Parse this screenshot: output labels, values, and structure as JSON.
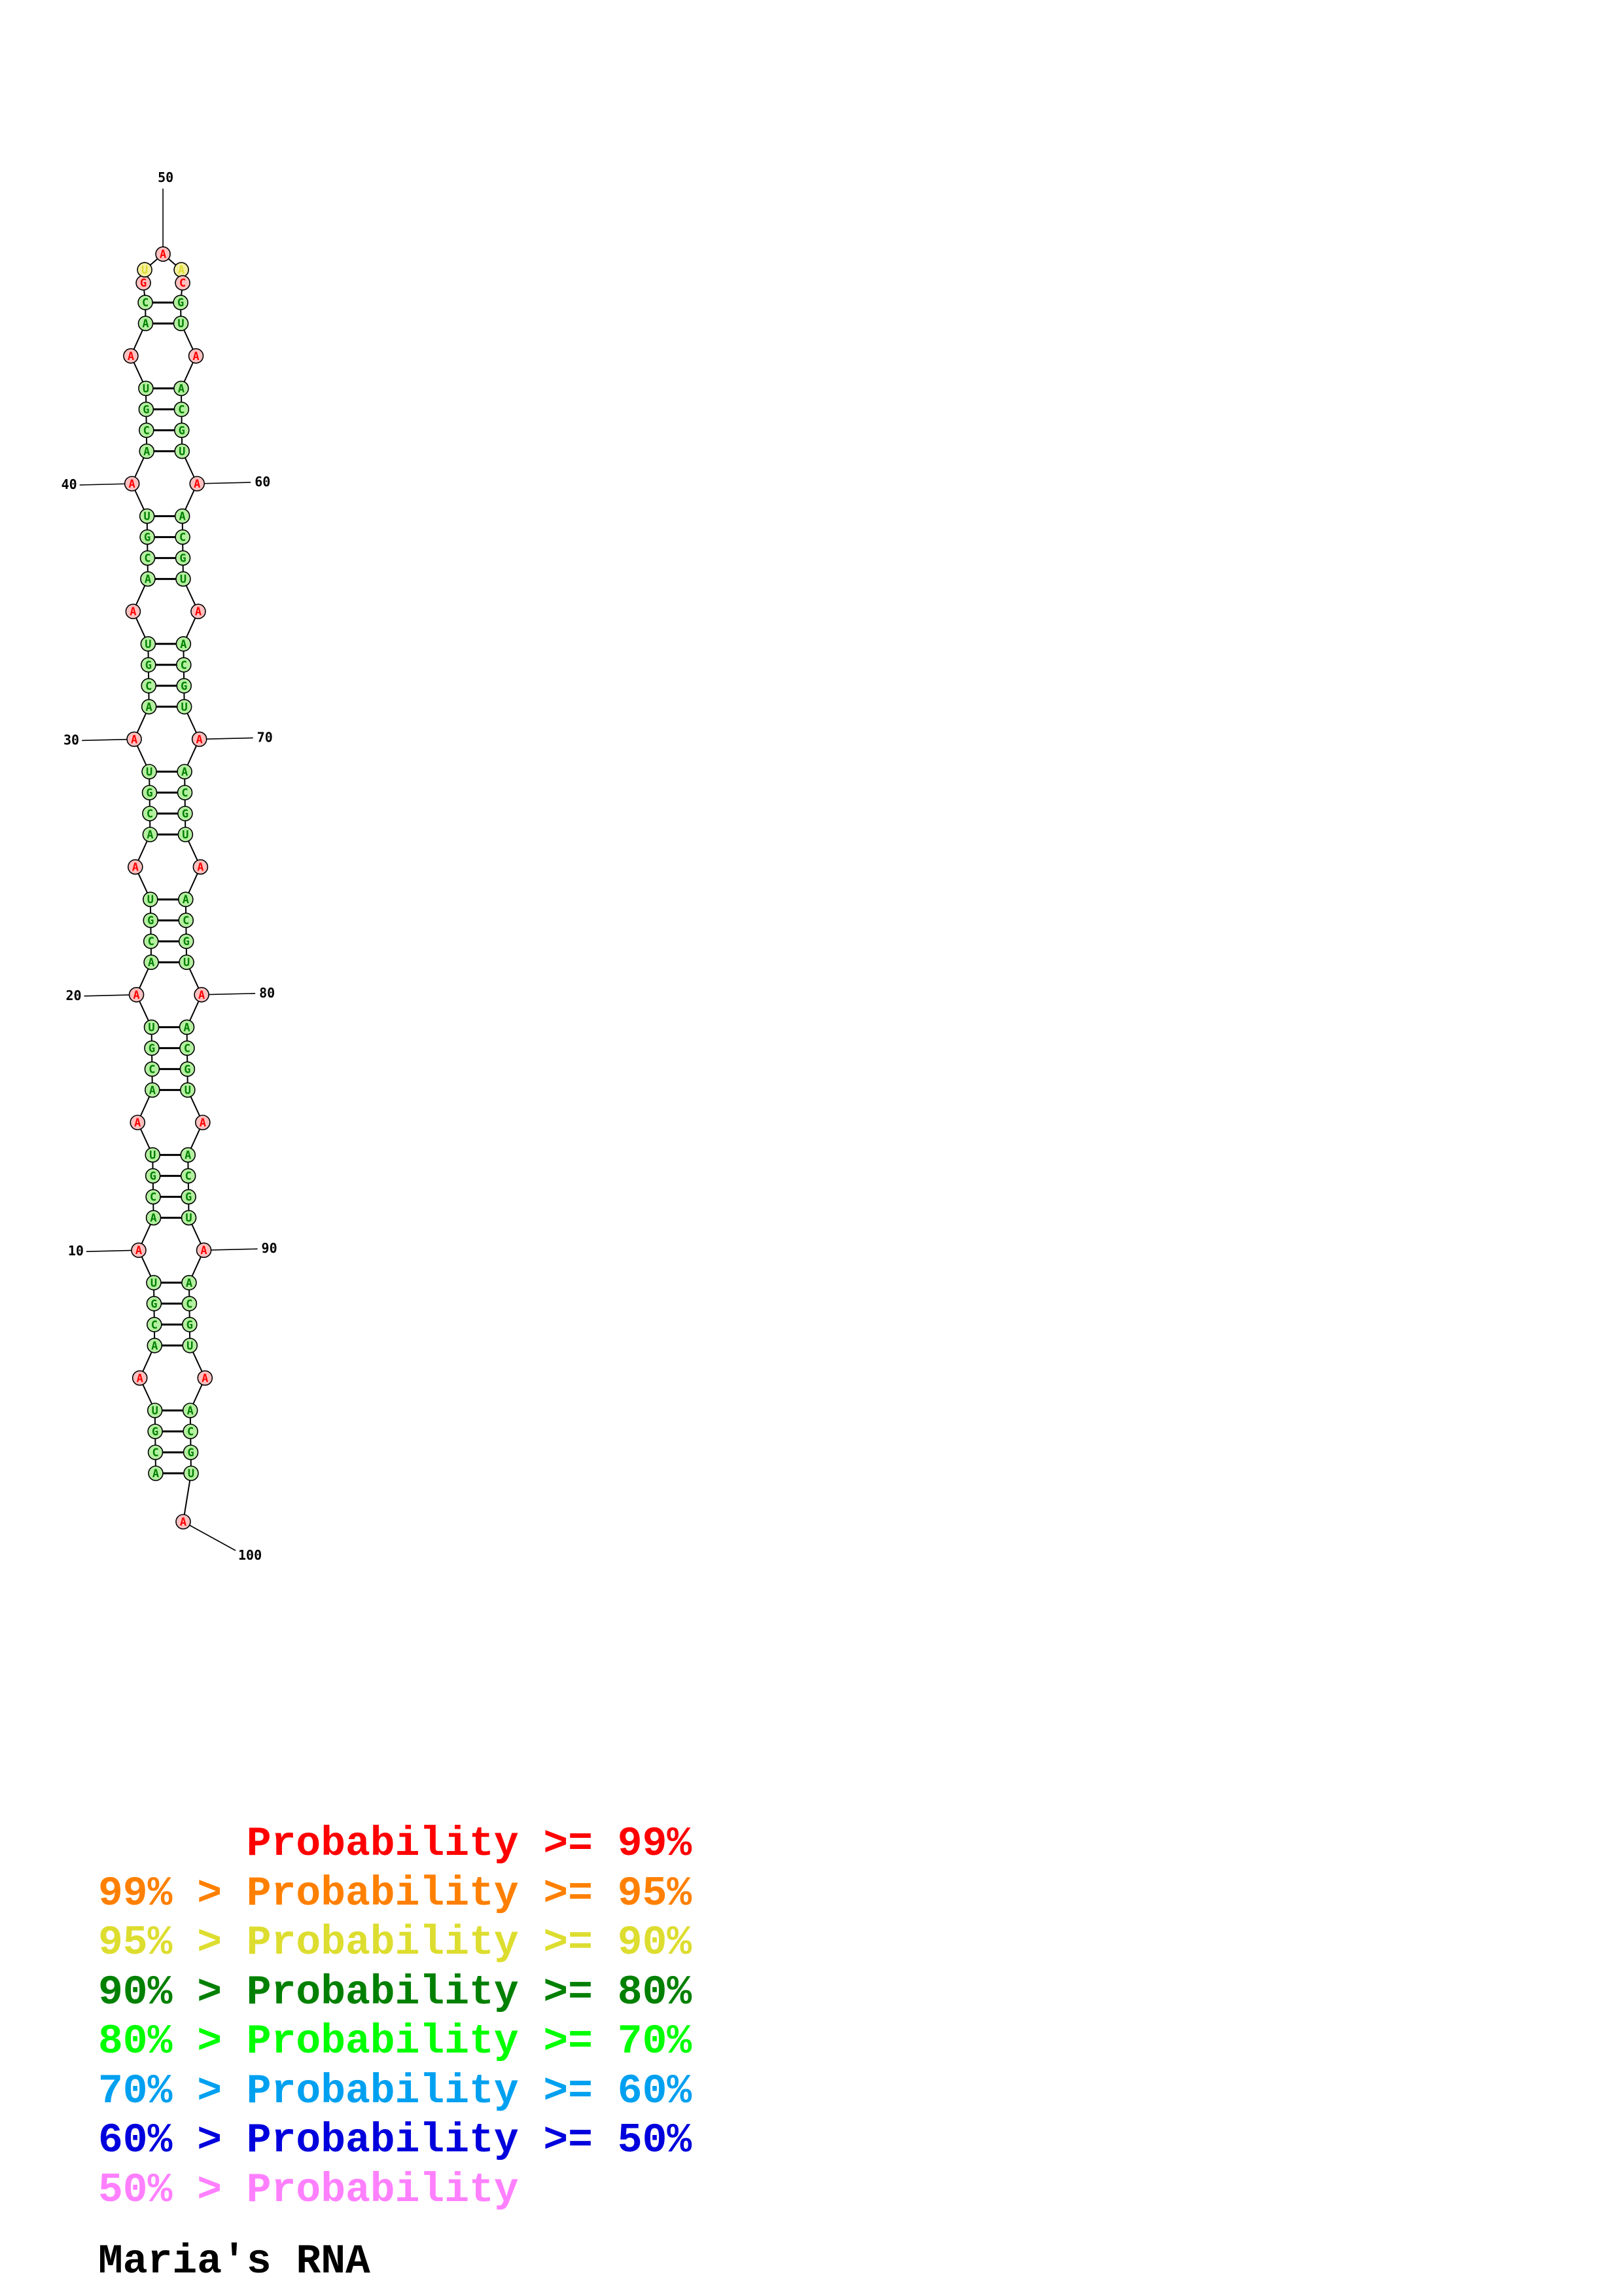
{
  "sequence": "ACGUAACGUAACGUAACGUAACGUAACGUAACGUAACGUAACGUAACGUAACGUAACGUAACGUAACGUAACGUAACGUAACGUAACGUAACGUAACGUA",
  "pairs": [
    [
      1,
      99
    ],
    [
      2,
      98
    ],
    [
      3,
      97
    ],
    [
      4,
      96
    ],
    [
      6,
      94
    ],
    [
      7,
      93
    ],
    [
      8,
      92
    ],
    [
      9,
      91
    ],
    [
      11,
      89
    ],
    [
      12,
      88
    ],
    [
      13,
      87
    ],
    [
      14,
      86
    ],
    [
      16,
      84
    ],
    [
      17,
      83
    ],
    [
      18,
      82
    ],
    [
      19,
      81
    ],
    [
      21,
      79
    ],
    [
      22,
      78
    ],
    [
      23,
      77
    ],
    [
      24,
      76
    ],
    [
      26,
      74
    ],
    [
      27,
      73
    ],
    [
      28,
      72
    ],
    [
      29,
      71
    ],
    [
      31,
      69
    ],
    [
      32,
      68
    ],
    [
      33,
      67
    ],
    [
      34,
      66
    ],
    [
      36,
      64
    ],
    [
      37,
      63
    ],
    [
      38,
      62
    ],
    [
      39,
      61
    ],
    [
      41,
      59
    ],
    [
      42,
      58
    ],
    [
      43,
      57
    ],
    [
      44,
      56
    ],
    [
      46,
      54
    ],
    [
      47,
      53
    ]
  ],
  "probability_colors": {
    "red": "#ff0000",
    "orange": "#ff8000",
    "yellow": "#dddd30",
    "dark_green": "#008000",
    "green": "#00ff00",
    "light_blue": "#00a0f0",
    "blue": "#0000dd",
    "pink": "#ff80ff"
  },
  "nucleotide_fill": {
    "paired": "#b4f0a0",
    "unpaired": "#ffc0c0",
    "loop_edge": "#f4f0a0"
  },
  "position_labels": [
    "10",
    "20",
    "30",
    "40",
    "50",
    "60",
    "70",
    "80",
    "90",
    "100"
  ],
  "legend": [
    {
      "left": "",
      "sep": "",
      "mid": "Probability",
      "right": ">= 99%",
      "color": "#ff0000"
    },
    {
      "left": "99%",
      "sep": ">",
      "mid": "Probability",
      "right": ">= 95%",
      "color": "#ff8000"
    },
    {
      "left": "95%",
      "sep": ">",
      "mid": "Probability",
      "right": ">= 90%",
      "color": "#dddd30"
    },
    {
      "left": "90%",
      "sep": ">",
      "mid": "Probability",
      "right": ">= 80%",
      "color": "#008000"
    },
    {
      "left": "80%",
      "sep": ">",
      "mid": "Probability",
      "right": ">= 70%",
      "color": "#00ff00"
    },
    {
      "left": "70%",
      "sep": ">",
      "mid": "Probability",
      "right": ">= 60%",
      "color": "#00a0f0"
    },
    {
      "left": "60%",
      "sep": ">",
      "mid": "Probability",
      "right": ">= 50%",
      "color": "#0000dd"
    },
    {
      "left": "50%",
      "sep": ">",
      "mid": "Probability",
      "right": "",
      "color": "#ff80ff"
    }
  ],
  "caption": "Maria's RNA"
}
